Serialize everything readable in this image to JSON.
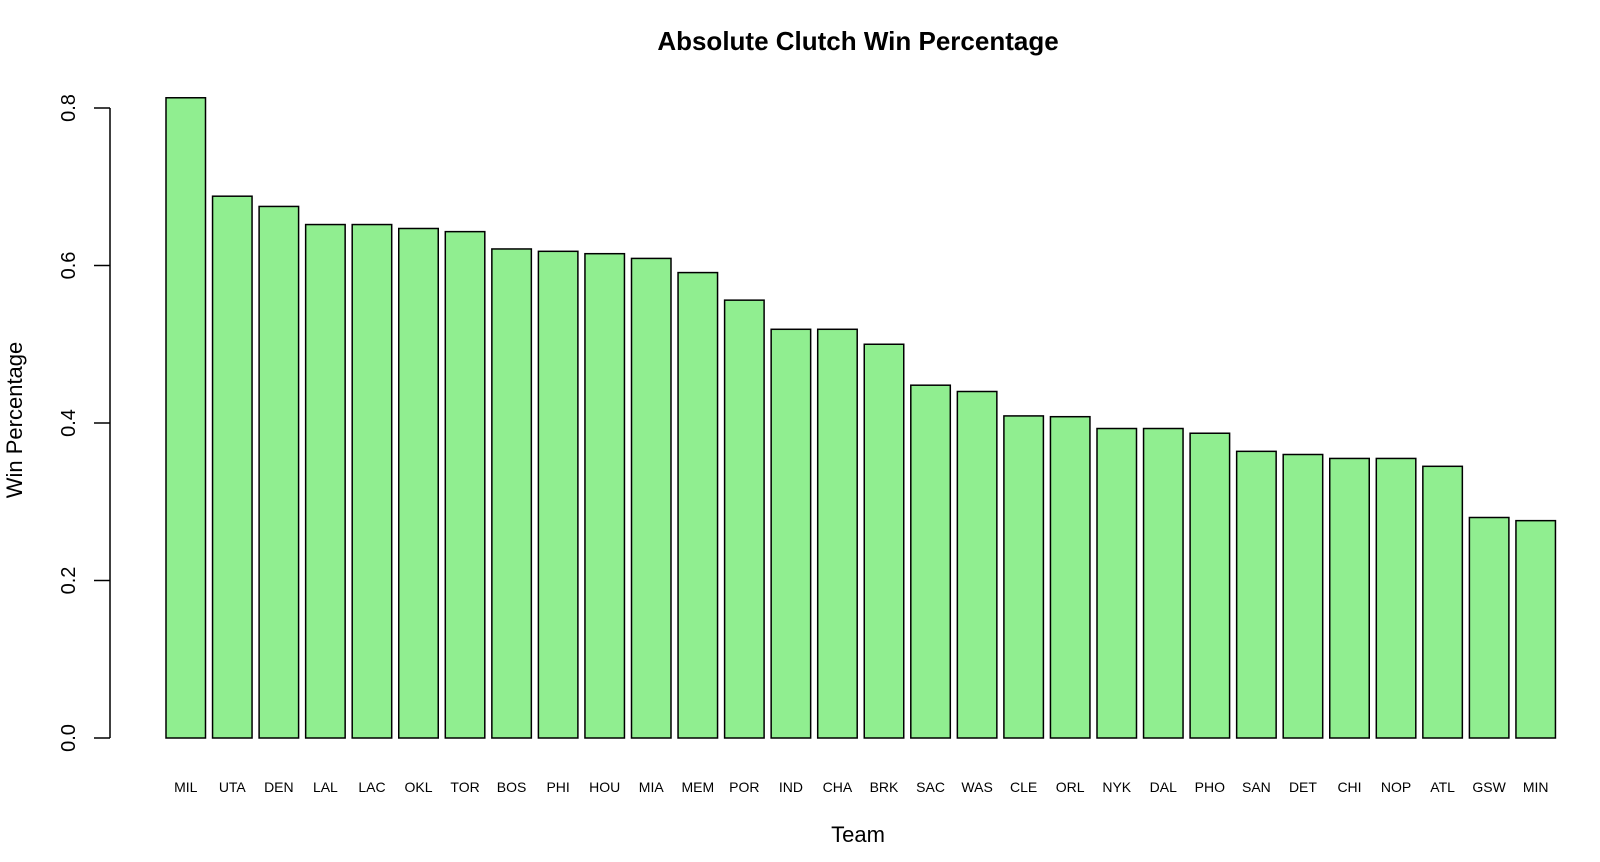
{
  "chart_data": {
    "type": "bar",
    "title": "Absolute Clutch Win Percentage",
    "xlabel": "Team",
    "ylabel": "Win Percentage",
    "ylim": [
      0,
      0.8
    ],
    "yticks": [
      "0.0",
      "0.2",
      "0.4",
      "0.6",
      "0.8"
    ],
    "bar_color": "#90ee90",
    "categories": [
      "MIL",
      "UTA",
      "DEN",
      "LAL",
      "LAC",
      "OKL",
      "TOR",
      "BOS",
      "PHI",
      "HOU",
      "MIA",
      "MEM",
      "POR",
      "IND",
      "CHA",
      "BRK",
      "SAC",
      "WAS",
      "CLE",
      "ORL",
      "NYK",
      "DAL",
      "PHO",
      "SAN",
      "DET",
      "CHI",
      "NOP",
      "ATL",
      "GSW",
      "MIN"
    ],
    "values": [
      0.813,
      0.688,
      0.675,
      0.652,
      0.652,
      0.647,
      0.643,
      0.621,
      0.618,
      0.615,
      0.609,
      0.591,
      0.556,
      0.519,
      0.519,
      0.5,
      0.448,
      0.44,
      0.409,
      0.408,
      0.393,
      0.393,
      0.387,
      0.364,
      0.36,
      0.355,
      0.355,
      0.345,
      0.28,
      0.276
    ]
  }
}
